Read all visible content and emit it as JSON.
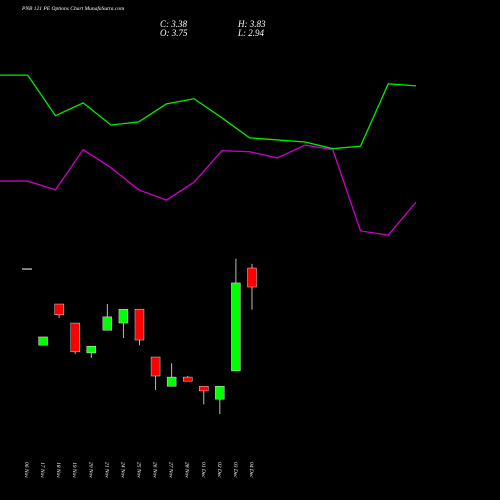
{
  "chart_data": [
    {
      "type": "candlestick",
      "title": "PNB 121 PE Options Chart MunafaSutra.com",
      "info": {
        "close": "C: 3.38",
        "open": "O: 3.75",
        "high": "H: 3.83",
        "low": "L: 2.94"
      },
      "categories": [
        "06 Nov",
        "17 Nov",
        "18 Nov",
        "19 Nov",
        "20 Nov",
        "21 Nov",
        "24 Nov",
        "25 Nov",
        "26 Nov",
        "27 Nov",
        "28 Nov",
        "01 Dec",
        "02 Dec",
        "03 Dec",
        "04 Dec"
      ],
      "open": [
        3.73,
        2.25,
        3.05,
        2.68,
        2.1,
        2.54,
        2.68,
        2.95,
        2.02,
        1.45,
        1.63,
        1.45,
        1.2,
        1.75,
        3.75
      ],
      "high": [
        3.73,
        2.41,
        3.05,
        2.68,
        2.23,
        3.05,
        2.95,
        2.95,
        2.02,
        1.9,
        1.65,
        1.45,
        1.45,
        3.93,
        3.83
      ],
      "low": [
        3.73,
        2.25,
        2.78,
        2.08,
        2.0,
        2.54,
        2.39,
        2.25,
        1.38,
        1.45,
        1.55,
        1.1,
        0.91,
        1.75,
        2.94
      ],
      "close": [
        3.73,
        2.41,
        2.84,
        2.12,
        2.23,
        2.8,
        2.95,
        2.35,
        1.65,
        1.63,
        1.55,
        1.36,
        1.45,
        3.46,
        3.38
      ],
      "up_color": "#00ff00",
      "down_color": "#ff0000",
      "ylim": [
        -0.76,
        8.96
      ]
    },
    {
      "type": "line",
      "series": [
        {
          "color": "#00ee00",
          "values": [
            7.5,
            7.5,
            6.71,
            6.96,
            6.53,
            6.59,
            6.94,
            7.04,
            6.67,
            6.28,
            6.24,
            6.2,
            6.07,
            6.12,
            7.33,
            7.29
          ]
        },
        {
          "color": "#cc00cc",
          "values": [
            5.44,
            5.44,
            5.27,
            6.05,
            5.7,
            5.27,
            5.07,
            5.42,
            6.03,
            6.01,
            5.89,
            6.14,
            6.05,
            4.47,
            4.39,
            5.03
          ]
        }
      ],
      "ylim": [
        -0.76,
        8.96
      ]
    }
  ]
}
